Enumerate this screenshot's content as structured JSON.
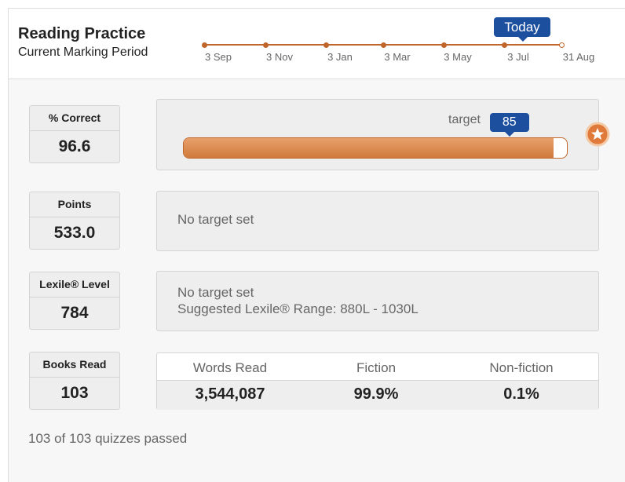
{
  "header": {
    "title": "Reading Practice",
    "subtitle": "Current Marking Period"
  },
  "timeline": {
    "dates": [
      "3 Sep",
      "3 Nov",
      "3 Jan",
      "3 Mar",
      "3 May",
      "3 Jul",
      "31 Aug"
    ],
    "today": "Today"
  },
  "metrics": [
    {
      "label": "% Correct",
      "value": 96.6,
      "target_label": "target",
      "target": 85
    },
    {
      "label": "Points",
      "value": "533.0",
      "note": "No target set"
    },
    {
      "label": "Lexile® Level",
      "value": 784,
      "note": "No target set",
      "suggestion": "Suggested Lexile® Range: 880L - 1030L"
    },
    {
      "label": "Books Read",
      "value": 103,
      "stats": {
        "headers": [
          "Words Read",
          "Fiction",
          "Non-fiction"
        ],
        "values": [
          "3,544,087",
          "99.9%",
          "0.1%"
        ]
      }
    }
  ],
  "footer": "103 of 103 quizzes passed"
}
